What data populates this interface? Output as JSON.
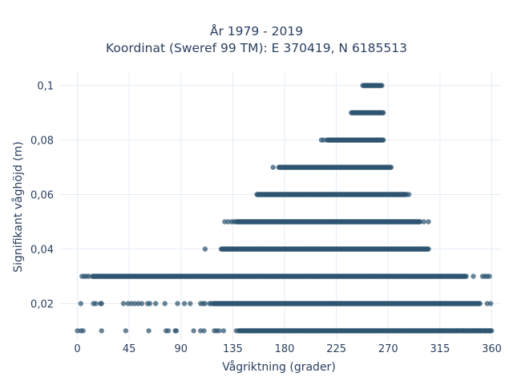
{
  "chart_data": {
    "type": "scatter",
    "title_line1": "År 1979 - 2019",
    "title_line2": "Koordinat (Sweref 99 TM): E 370419, N 6185513",
    "xlabel": "Vågriktning (grader)",
    "ylabel": "Signifikant våghöjd (m)",
    "xlim": [
      -15,
      368
    ],
    "ylim": [
      0.0063,
      0.1046
    ],
    "x_ticks": [
      0,
      45,
      90,
      135,
      180,
      225,
      270,
      315,
      360
    ],
    "y_ticks": [
      0.02,
      0.04,
      0.06,
      0.08,
      0.1
    ],
    "y_tick_labels": [
      "0,02",
      "0,04",
      "0,06",
      "0,08",
      "0,1"
    ],
    "grid": true,
    "marker_color": "#2e5570",
    "bands": [
      {
        "y": 0.01,
        "dense": [
          140,
          360
        ],
        "sparse": [
          0,
          3,
          5,
          21,
          42,
          62,
          77,
          79,
          85,
          86,
          101,
          107,
          110,
          119,
          121,
          123,
          127,
          138,
          330,
          335,
          340,
          343,
          346,
          350,
          354,
          358
        ]
      },
      {
        "y": 0.02,
        "dense": [
          118,
          350
        ],
        "sparse": [
          3,
          14,
          16,
          20,
          21,
          40,
          44,
          47,
          50,
          53,
          56,
          61,
          63,
          68,
          76,
          87,
          93,
          98,
          107,
          109,
          111,
          115,
          116,
          356,
          359
        ]
      },
      {
        "y": 0.03,
        "dense": [
          13,
          338
        ],
        "sparse": [
          4,
          6,
          8,
          10,
          344,
          352,
          354,
          356,
          358
        ]
      },
      {
        "y": 0.04,
        "dense": [
          125,
          305
        ],
        "sparse": [
          111
        ]
      },
      {
        "y": 0.05,
        "dense": [
          138,
          298
        ],
        "sparse": [
          128,
          131,
          134,
          136,
          301,
          305
        ]
      },
      {
        "y": 0.06,
        "dense": [
          156,
          285
        ],
        "sparse": [
          286,
          288
        ]
      },
      {
        "y": 0.07,
        "dense": [
          175,
          273
        ],
        "sparse": [
          170
        ]
      },
      {
        "y": 0.08,
        "dense": [
          217,
          266
        ],
        "sparse": [
          212,
          214
        ]
      },
      {
        "y": 0.09,
        "dense": [
          238,
          266
        ],
        "sparse": []
      },
      {
        "y": 0.1,
        "dense": [
          248,
          265
        ],
        "sparse": []
      }
    ]
  }
}
